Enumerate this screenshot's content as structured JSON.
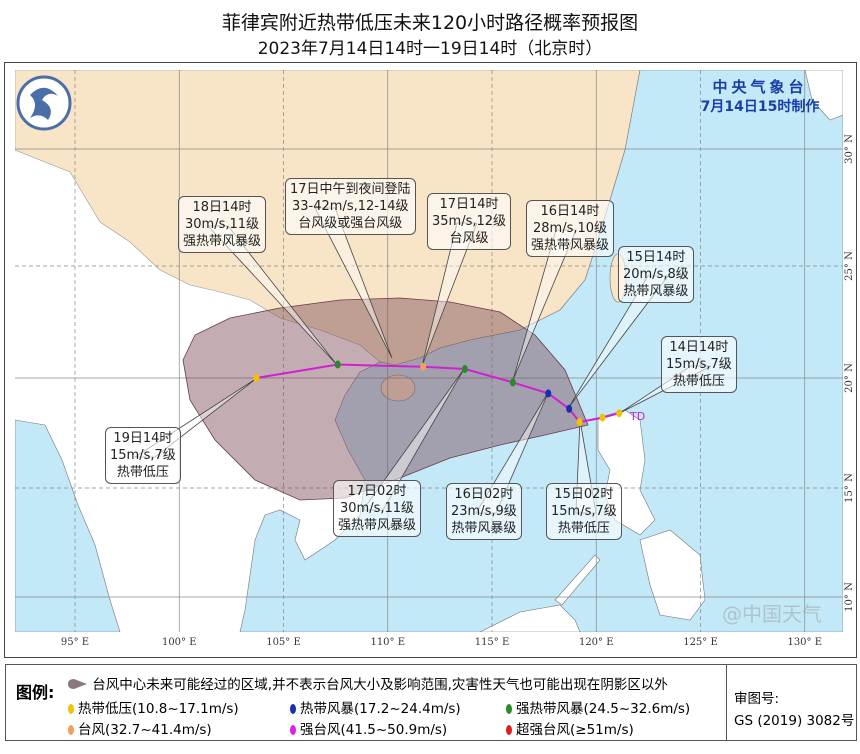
{
  "title": "菲律宾附近热带低压未来120小时路径概率预报图",
  "subtitle": "2023年7月14日14时一19日14时（北京时）",
  "agency": "中央气象台",
  "issued": "7月14日15时制作",
  "td_label": "TD",
  "axes": {
    "lon_labels": [
      "95° E",
      "100° E",
      "105° E",
      "110° E",
      "115° E",
      "120° E",
      "125° E",
      "130° E"
    ],
    "lat_labels": [
      "30° N",
      "25° N",
      "20° N",
      "15° N",
      "10° N"
    ]
  },
  "track": [
    {
      "lon": 121.1,
      "lat": 18.4,
      "level": "td"
    },
    {
      "lon": 120.3,
      "lat": 18.2,
      "level": "td"
    },
    {
      "lon": 119.2,
      "lat": 18.0,
      "level": "td"
    },
    {
      "lon": 118.7,
      "lat": 18.6,
      "level": "ts"
    },
    {
      "lon": 117.7,
      "lat": 19.3,
      "level": "ts"
    },
    {
      "lon": 116.0,
      "lat": 19.8,
      "level": "sts"
    },
    {
      "lon": 113.7,
      "lat": 20.4,
      "level": "sts"
    },
    {
      "lon": 111.7,
      "lat": 20.5,
      "level": "ty"
    },
    {
      "lon": 107.6,
      "lat": 20.6,
      "level": "sts"
    },
    {
      "lon": 103.7,
      "lat": 20.0,
      "level": "td"
    }
  ],
  "callouts": [
    {
      "lines": [
        "18日14时",
        "30m/s,11级",
        "强热带风暴级"
      ]
    },
    {
      "lines": [
        "17日中午到夜间登陆",
        "33-42m/s,12-14级",
        "台风级或强台风级"
      ]
    },
    {
      "lines": [
        "17日14时",
        "35m/s,12级",
        "台风级"
      ]
    },
    {
      "lines": [
        "16日14时",
        "28m/s,10级",
        "强热带风暴级"
      ]
    },
    {
      "lines": [
        "15日14时",
        "20m/s,8级",
        "热带风暴级"
      ]
    },
    {
      "lines": [
        "14日14时",
        "15m/s,7级",
        "热带低压"
      ]
    },
    {
      "lines": [
        "19日14时",
        "15m/s,7级",
        "热带低压"
      ]
    },
    {
      "lines": [
        "17日02时",
        "30m/s,11级",
        "强热带风暴级"
      ]
    },
    {
      "lines": [
        "16日02时",
        "23m/s,9级",
        "热带风暴级"
      ]
    },
    {
      "lines": [
        "15日02时",
        "15m/s,7级",
        "热带低压"
      ]
    }
  ],
  "legend": {
    "title": "图例:",
    "area": "台风中心未来可能经过的区域,并不表示台风大小及影响范围,灾害性天气也可能出现在阴影区以外",
    "items": [
      {
        "label": "热带低压(10.8~17.1m/s)",
        "color": "#f2c200"
      },
      {
        "label": "热带风暴(17.2~24.4m/s)",
        "color": "#1a2fb0"
      },
      {
        "label": "强热带风暴(24.5~32.6m/s)",
        "color": "#2a8a2a"
      },
      {
        "label": "台风(32.7~41.4m/s)",
        "color": "#f0a060"
      },
      {
        "label": "强台风(41.5~50.9m/s)",
        "color": "#e020e0"
      },
      {
        "label": "超强台风(≥51m/s)",
        "color": "#e02020"
      }
    ],
    "approval_label": "审图号:",
    "approval_no": "GS (2019) 3082号"
  },
  "watermark": "@中国天气",
  "colors": {
    "ocean": "#c3e8f8",
    "china": "#f8e4c6",
    "other_land": "#ffffff",
    "cone": "#7a4a55",
    "track": "#d020d0"
  }
}
